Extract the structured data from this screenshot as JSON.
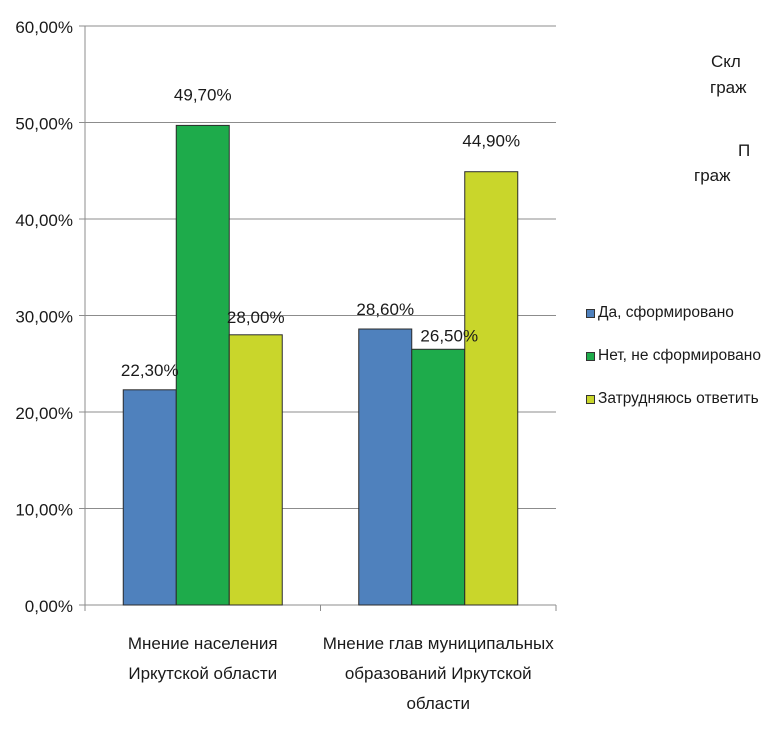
{
  "chart_data": {
    "type": "bar",
    "categories": [
      [
        "Мнение населения",
        "Иркутской области"
      ],
      [
        "Мнение глав муниципальных",
        "образований Иркутской",
        "области"
      ]
    ],
    "series": [
      {
        "name": "Да, сформировано",
        "color": "#4f81bd",
        "values": [
          22.3,
          28.6
        ],
        "labels": [
          "22,30%",
          "28,60%"
        ]
      },
      {
        "name": "Нет, не сформировано",
        "color": "#1eab4b",
        "values": [
          49.7,
          26.5
        ],
        "labels": [
          "49,70%",
          "26,50%"
        ]
      },
      {
        "name": "Затрудняюсь ответить",
        "color": "#c9d62b",
        "values": [
          28.0,
          44.9
        ],
        "labels": [
          "28,00%",
          "44,90%"
        ]
      }
    ],
    "ylim": [
      0,
      60
    ],
    "yticks": [
      "0,00%",
      "10,00%",
      "20,00%",
      "30,00%",
      "40,00%",
      "50,00%",
      "60,00%"
    ],
    "grid": true,
    "legend": "right"
  },
  "clipped_text": {
    "line1": "Скл",
    "line2": "граж",
    "line3": "П",
    "line4": "граж"
  }
}
